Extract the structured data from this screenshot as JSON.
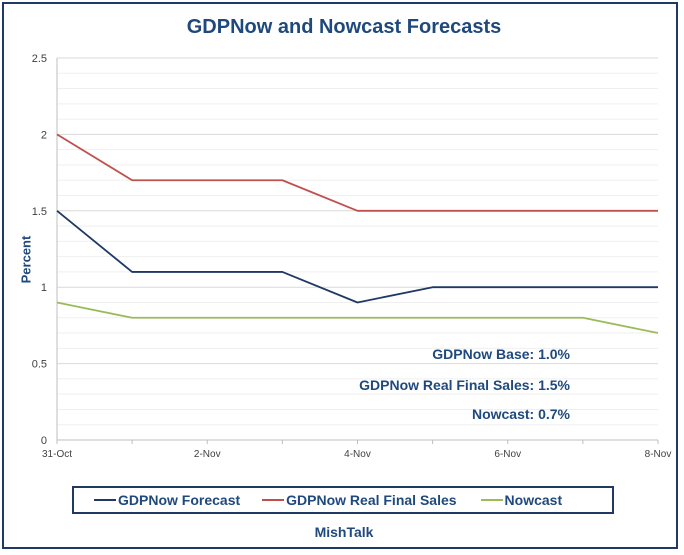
{
  "chart_data": {
    "type": "line",
    "title": "GDPNow and Nowcast Forecasts",
    "ylabel": "Percent",
    "xlabel": "",
    "ylim": [
      0,
      2.5
    ],
    "yticks": [
      "0",
      "0.5",
      "1",
      "1.5",
      "2",
      "2.5"
    ],
    "x": [
      "31-Oct",
      "1-Nov",
      "2-Nov",
      "3-Nov",
      "4-Nov",
      "5-Nov",
      "6-Nov",
      "7-Nov",
      "8-Nov"
    ],
    "xtick_labels": [
      "31-Oct",
      "",
      "2-Nov",
      "",
      "4-Nov",
      "",
      "6-Nov",
      "",
      "8-Nov"
    ],
    "grid": true,
    "legend_position": "bottom",
    "series": [
      {
        "name": "GDPNow Forecast",
        "color": "#1f3864",
        "values": [
          1.5,
          1.1,
          1.1,
          1.1,
          0.9,
          1.0,
          1.0,
          1.0,
          1.0
        ]
      },
      {
        "name": "GDPNow Real Final Sales",
        "color": "#c0504d",
        "values": [
          2.0,
          1.7,
          1.7,
          1.7,
          1.5,
          1.5,
          1.5,
          1.5,
          1.5
        ]
      },
      {
        "name": "Nowcast",
        "color": "#9bbb59",
        "values": [
          0.9,
          0.8,
          0.8,
          0.8,
          0.8,
          0.8,
          0.8,
          0.8,
          0.7
        ]
      }
    ],
    "annotations": [
      "GDPNow Base: 1.0%",
      "GDPNow Real Final Sales: 1.5%",
      "Nowcast: 0.7%"
    ]
  },
  "footer": {
    "source": "MishTalk"
  }
}
